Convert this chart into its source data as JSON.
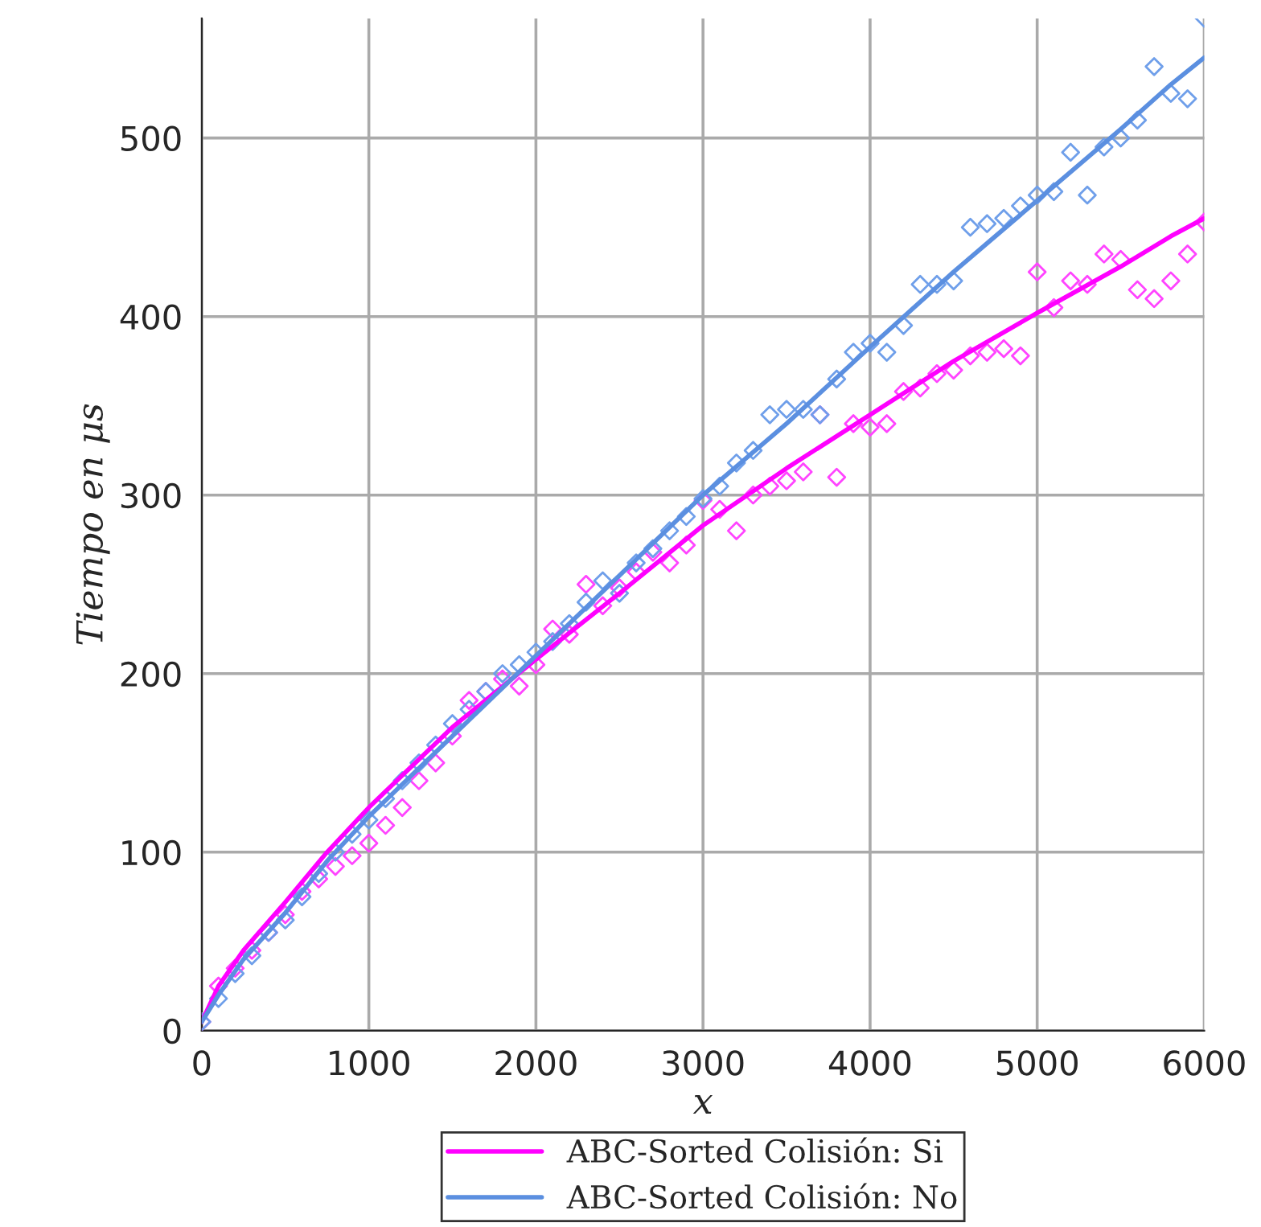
{
  "chart_data": {
    "type": "line",
    "xlabel": "x",
    "ylabel": "Tiempo en μs",
    "xlim": [
      0,
      6000
    ],
    "ylim": [
      0,
      567
    ],
    "xticks": [
      0,
      1000,
      2000,
      3000,
      4000,
      5000,
      6000
    ],
    "yticks": [
      0,
      100,
      200,
      300,
      400,
      500
    ],
    "grid": true,
    "legend": "bottom",
    "series": [
      {
        "type": "scatter",
        "marker": "diamond",
        "color": "#ff44ff",
        "x": [
          0,
          100,
          200,
          300,
          400,
          500,
          600,
          700,
          800,
          900,
          1000,
          1100,
          1200,
          1300,
          1400,
          1500,
          1600,
          1700,
          1800,
          1900,
          2000,
          2100,
          2200,
          2300,
          2400,
          2500,
          2600,
          2700,
          2800,
          2900,
          3000,
          3100,
          3200,
          3300,
          3400,
          3500,
          3600,
          3700,
          3800,
          3900,
          4000,
          4100,
          4200,
          4300,
          4400,
          4500,
          4600,
          4700,
          4800,
          4900,
          5000,
          5100,
          5200,
          5300,
          5400,
          5500,
          5600,
          5700,
          5800,
          5900,
          6000
        ],
        "values": [
          5,
          25,
          35,
          45,
          55,
          65,
          78,
          85,
          92,
          98,
          105,
          115,
          125,
          140,
          150,
          165,
          185,
          190,
          197,
          193,
          205,
          225,
          222,
          250,
          238,
          248,
          257,
          268,
          262,
          272,
          297,
          292,
          280,
          300,
          305,
          308,
          313,
          345,
          310,
          340,
          338,
          340,
          358,
          360,
          368,
          370,
          378,
          380,
          382,
          378,
          425,
          405,
          420,
          418,
          435,
          432,
          415,
          410,
          420,
          435,
          453
        ]
      },
      {
        "type": "scatter",
        "marker": "diamond",
        "color": "#6f9fea",
        "x": [
          0,
          100,
          200,
          300,
          400,
          500,
          600,
          700,
          800,
          900,
          1000,
          1100,
          1200,
          1300,
          1400,
          1500,
          1600,
          1700,
          1800,
          1900,
          2000,
          2100,
          2200,
          2300,
          2400,
          2500,
          2600,
          2700,
          2800,
          2900,
          3000,
          3100,
          3200,
          3300,
          3400,
          3500,
          3600,
          3700,
          3800,
          3900,
          4000,
          4100,
          4200,
          4300,
          4400,
          4500,
          4600,
          4700,
          4800,
          4900,
          5000,
          5100,
          5200,
          5300,
          5400,
          5500,
          5600,
          5700,
          5800,
          5900,
          6000
        ],
        "values": [
          5,
          18,
          32,
          42,
          55,
          62,
          75,
          88,
          100,
          110,
          118,
          130,
          140,
          150,
          160,
          172,
          180,
          190,
          200,
          205,
          212,
          218,
          228,
          240,
          252,
          245,
          262,
          270,
          280,
          288,
          298,
          305,
          318,
          325,
          345,
          348,
          348,
          345,
          365,
          380,
          385,
          380,
          395,
          418,
          418,
          420,
          450,
          452,
          455,
          462,
          468,
          470,
          492,
          468,
          495,
          500,
          510,
          540,
          525,
          522,
          567
        ]
      },
      {
        "name": "ABC-Sorted Colisión: Si",
        "color": "#ff00ff",
        "x": [
          0,
          100,
          250,
          500,
          750,
          1000,
          1500,
          2000,
          2500,
          3000,
          3500,
          4000,
          4500,
          5000,
          5500,
          5800,
          6000
        ],
        "values": [
          5,
          25,
          45,
          72,
          100,
          125,
          170,
          208,
          245,
          283,
          315,
          345,
          375,
          402,
          428,
          445,
          455
        ]
      },
      {
        "name": "ABC-Sorted Colisión: No",
        "color": "#5b8fe0",
        "x": [
          0,
          100,
          250,
          500,
          750,
          1000,
          1500,
          2000,
          2500,
          3000,
          3500,
          4000,
          4500,
          5000,
          5500,
          5800,
          6000
        ],
        "values": [
          5,
          20,
          40,
          66,
          95,
          120,
          165,
          210,
          255,
          300,
          340,
          383,
          425,
          465,
          505,
          530,
          545
        ]
      }
    ]
  }
}
